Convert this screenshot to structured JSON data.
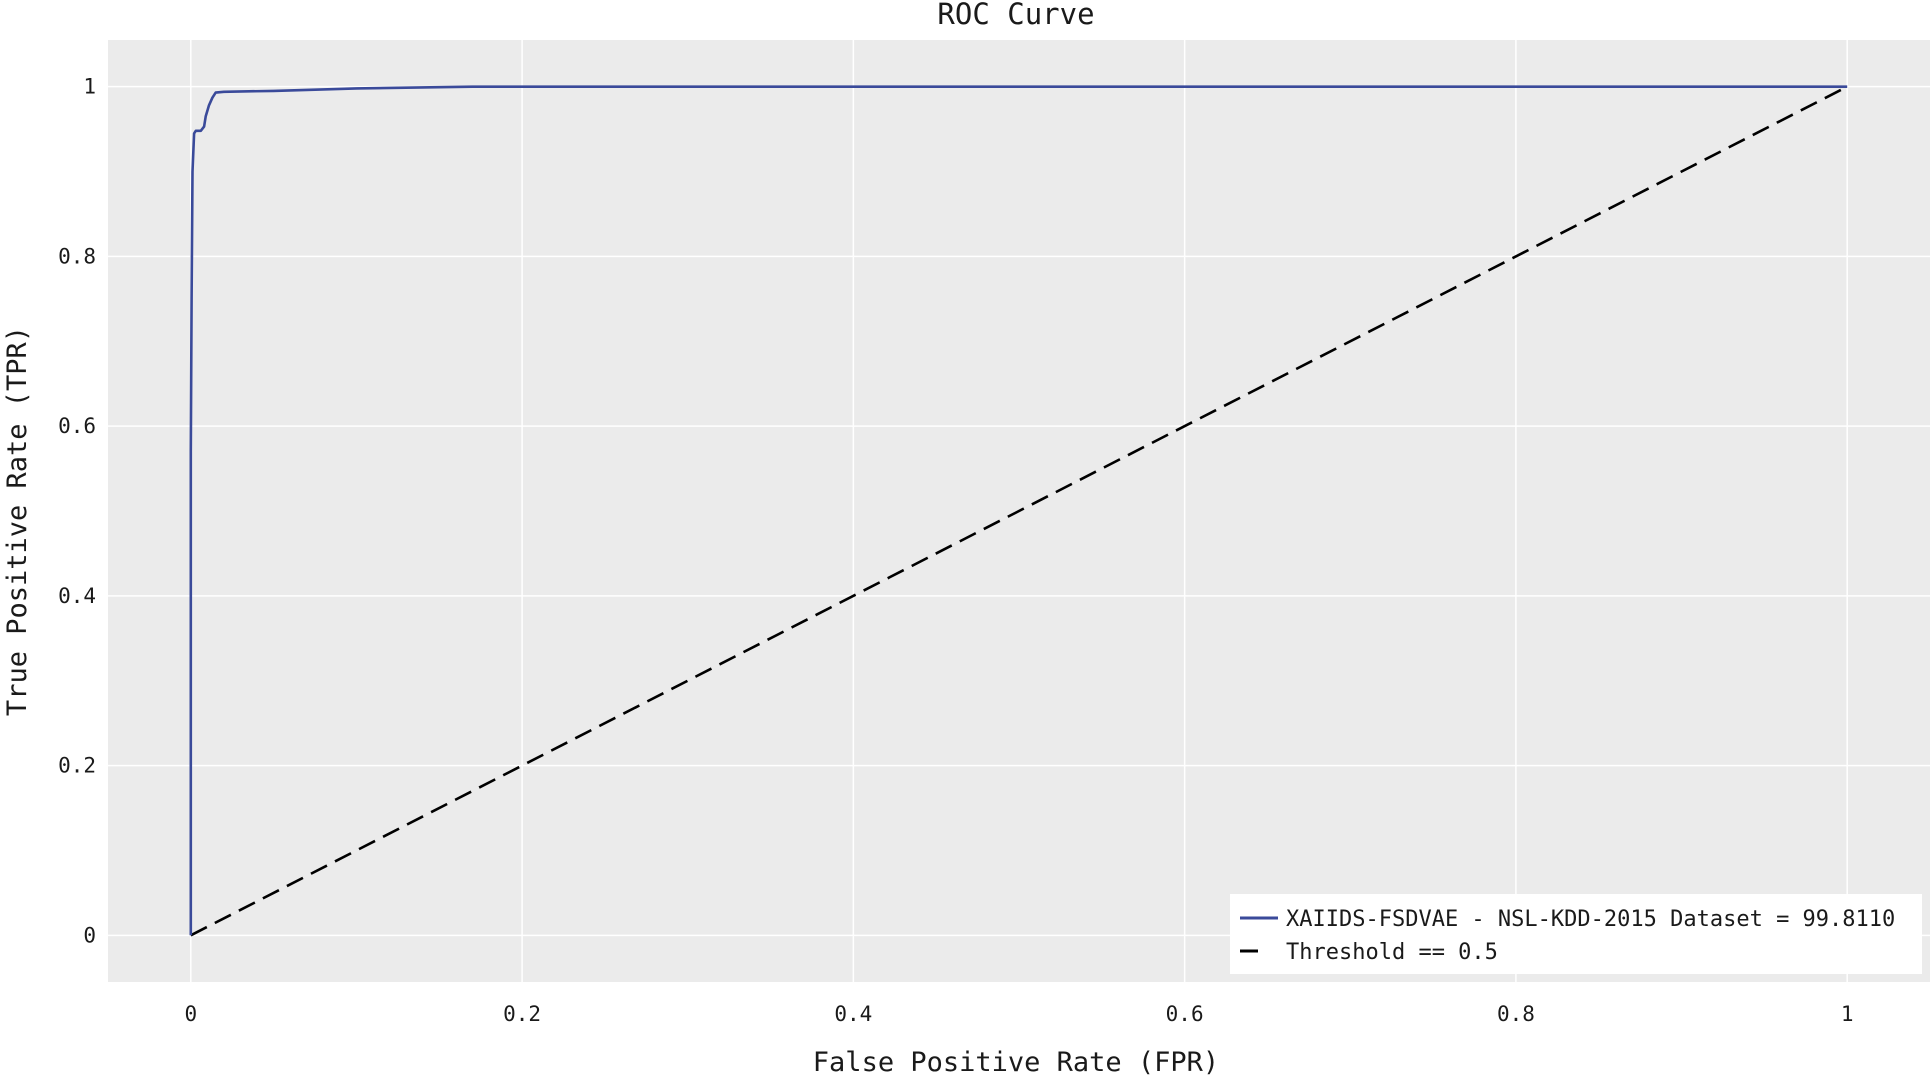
{
  "chart_data": {
    "type": "line",
    "title": "ROC Curve",
    "xlabel": "False Positive Rate (FPR)",
    "ylabel": "True Positive Rate (TPR)",
    "xlim": [
      -0.05,
      1.05
    ],
    "ylim": [
      -0.055,
      1.055
    ],
    "x_ticks": [
      0,
      0.2,
      0.4,
      0.6,
      0.8,
      1
    ],
    "x_tick_labels": [
      "0",
      "0.2",
      "0.4",
      "0.6",
      "0.8",
      "1"
    ],
    "y_ticks": [
      0,
      0.2,
      0.4,
      0.6,
      0.8,
      1
    ],
    "y_tick_labels": [
      "0",
      "0.2",
      "0.4",
      "0.6",
      "0.8",
      "1"
    ],
    "grid": true,
    "legend_position": "bottom-right",
    "colors": {
      "plot_background": "#ebebeb",
      "grid": "#ffffff",
      "roc_line": "#3a4a9a",
      "threshold_line": "#000000",
      "legend_background": "#ffffff"
    },
    "series": [
      {
        "name": "XAIIDS-FSDVAE - NSL-KDD-2015 Dataset = 99.8110",
        "style": "solid",
        "x": [
          0,
          0,
          0.0005,
          0.001,
          0.002,
          0.003,
          0.006,
          0.008,
          0.009,
          0.011,
          0.013,
          0.015,
          0.02,
          0.05,
          0.1,
          0.17,
          1
        ],
        "y": [
          0,
          0.57,
          0.75,
          0.9,
          0.945,
          0.948,
          0.948,
          0.953,
          0.965,
          0.978,
          0.987,
          0.993,
          0.994,
          0.995,
          0.998,
          1.0,
          1.0
        ]
      },
      {
        "name": "Threshold == 0.5",
        "style": "dashed",
        "x": [
          0,
          1
        ],
        "y": [
          0,
          1
        ]
      }
    ]
  }
}
